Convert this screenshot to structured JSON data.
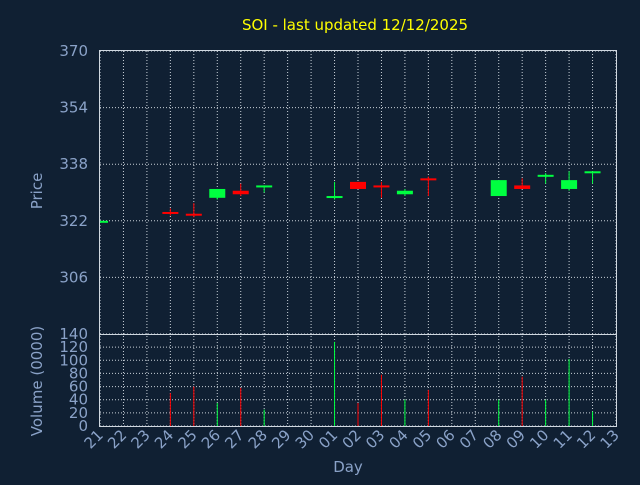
{
  "chart_data": {
    "type": "candlestick",
    "title": "SOI - last updated 12/12/2025",
    "xlabel": "Day",
    "ylabel_price": "Price",
    "ylabel_volume": "Volume (0000)",
    "price_ylim": [
      290,
      370
    ],
    "price_ticks": [
      370,
      354,
      338,
      322,
      306
    ],
    "volume_ylim": [
      0,
      140
    ],
    "volume_ticks": [
      140,
      120,
      100,
      80,
      60,
      40,
      20,
      0
    ],
    "grid": true,
    "x_labels": [
      "21",
      "22",
      "23",
      "24",
      "25",
      "26",
      "27",
      "28",
      "29",
      "30",
      "01",
      "02",
      "03",
      "04",
      "05",
      "06",
      "07",
      "08",
      "09",
      "10",
      "11",
      "12",
      "13"
    ],
    "colors": {
      "up": "#00ff40",
      "down": "#ff0000",
      "background": "#102033",
      "title": "#ffff00",
      "axis_text": "#8aa2c8"
    },
    "candles": [
      {
        "day": "21",
        "open": 322,
        "high": 322,
        "low": 322,
        "close": 322,
        "volume": 0
      },
      {
        "day": "24",
        "open": 324.5,
        "high": 325.5,
        "low": 323.5,
        "close": 324,
        "volume": 50
      },
      {
        "day": "25",
        "open": 324,
        "high": 327,
        "low": 323,
        "close": 323.5,
        "volume": 60
      },
      {
        "day": "26",
        "open": 328.5,
        "high": 331,
        "low": 328,
        "close": 331,
        "volume": 35
      },
      {
        "day": "27",
        "open": 330.5,
        "high": 332.5,
        "low": 329,
        "close": 329.5,
        "volume": 58
      },
      {
        "day": "28",
        "open": 331.5,
        "high": 332,
        "low": 330,
        "close": 332,
        "volume": 25
      },
      {
        "day": "01",
        "open": 328.5,
        "high": 333,
        "low": 328,
        "close": 329,
        "volume": 128
      },
      {
        "day": "02",
        "open": 333,
        "high": 333,
        "low": 331,
        "close": 331,
        "volume": 35
      },
      {
        "day": "03",
        "open": 332,
        "high": 333,
        "low": 328.5,
        "close": 331.5,
        "volume": 78
      },
      {
        "day": "04",
        "open": 329.5,
        "high": 331,
        "low": 329,
        "close": 330.5,
        "volume": 40
      },
      {
        "day": "05",
        "open": 334,
        "high": 334.5,
        "low": 329,
        "close": 333.5,
        "volume": 55
      },
      {
        "day": "08",
        "open": 329,
        "high": 333.5,
        "low": 329,
        "close": 333.5,
        "volume": 40
      },
      {
        "day": "09",
        "open": 332,
        "high": 334,
        "low": 331,
        "close": 331,
        "volume": 75
      },
      {
        "day": "10",
        "open": 334.5,
        "high": 335.5,
        "low": 332.5,
        "close": 335,
        "volume": 40
      },
      {
        "day": "11",
        "open": 331,
        "high": 336,
        "low": 330.5,
        "close": 333.5,
        "volume": 102
      },
      {
        "day": "12",
        "open": 335.5,
        "high": 336,
        "low": 332.5,
        "close": 336,
        "volume": 22
      }
    ]
  }
}
